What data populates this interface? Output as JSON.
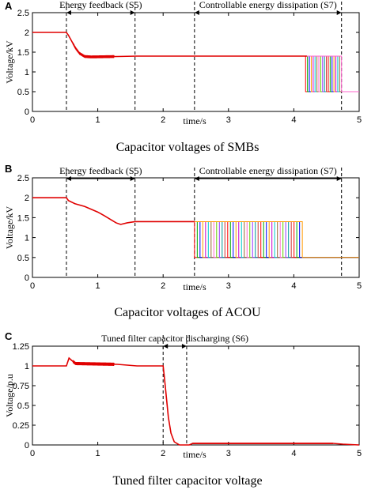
{
  "chart_data": [
    {
      "panel": "A",
      "type": "line",
      "caption": "Capacitor voltages of SMBs",
      "xlabel": "time/s",
      "ylabel": "Voltage/kV",
      "xlim": [
        0,
        5
      ],
      "ylim": [
        0,
        2.5
      ],
      "xticks": [
        "0",
        "1",
        "2",
        "3",
        "4",
        "5"
      ],
      "yticks": [
        "0",
        "0.5",
        "1",
        "1.5",
        "2",
        "2.5"
      ],
      "grid": false,
      "series": [
        {
          "color": "#e00000",
          "points": [
            [
              0,
              2.0
            ],
            [
              0.52,
              2.0
            ],
            [
              0.55,
              1.93
            ],
            [
              0.6,
              1.78
            ],
            [
              0.66,
              1.6
            ],
            [
              0.72,
              1.47
            ],
            [
              0.8,
              1.39
            ],
            [
              0.9,
              1.38
            ],
            [
              1.3,
              1.39
            ],
            [
              1.6,
              1.4
            ],
            [
              2.0,
              1.4
            ],
            [
              3.0,
              1.4
            ],
            [
              4.0,
              1.4
            ],
            [
              4.2,
              1.4
            ]
          ],
          "oscillation": {
            "from": 0.62,
            "to": 1.25,
            "amplitude": 0.035
          }
        }
      ],
      "fan": {
        "x_start": 4.18,
        "x_end": 4.73,
        "count": 20,
        "high": 1.4,
        "low": 0.5,
        "x_final": 5.0
      },
      "vlines": [
        0.52,
        1.57,
        2.48,
        4.73
      ],
      "annotations": [
        {
          "text": "Energy feedback (S5)",
          "from": 0.52,
          "to": 1.57
        },
        {
          "text": "Controllable energy dissipation (S7)",
          "from": 2.48,
          "to": 4.73
        }
      ]
    },
    {
      "panel": "B",
      "type": "line",
      "caption": "Capacitor voltages of ACOU",
      "xlabel": "time/s",
      "ylabel": "Voltage/kV",
      "xlim": [
        0,
        5
      ],
      "ylim": [
        0,
        2.5
      ],
      "xticks": [
        "0",
        "1",
        "2",
        "3",
        "4",
        "5"
      ],
      "yticks": [
        "0",
        "0.5",
        "1",
        "1.5",
        "2",
        "2.5"
      ],
      "grid": false,
      "series": [
        {
          "color": "#e00000",
          "points": [
            [
              0,
              2.0
            ],
            [
              0.52,
              2.0
            ],
            [
              0.55,
              1.93
            ],
            [
              0.65,
              1.85
            ],
            [
              0.8,
              1.78
            ],
            [
              1.0,
              1.64
            ],
            [
              1.1,
              1.55
            ],
            [
              1.2,
              1.45
            ],
            [
              1.28,
              1.37
            ],
            [
              1.35,
              1.33
            ],
            [
              1.45,
              1.37
            ],
            [
              1.57,
              1.4
            ],
            [
              2.0,
              1.4
            ],
            [
              2.48,
              1.4
            ]
          ],
          "oscillation": null
        }
      ],
      "fan": {
        "x_start": 2.48,
        "x_end": 4.13,
        "count": 40,
        "high": 1.4,
        "low": 0.5,
        "x_final": 5.0
      },
      "vlines": [
        0.52,
        1.57,
        2.48,
        4.73
      ],
      "annotations": [
        {
          "text": "Energy feedback (S5)",
          "from": 0.52,
          "to": 1.57
        },
        {
          "text": "Controllable energy dissipation (S7)",
          "from": 2.48,
          "to": 4.73
        }
      ]
    },
    {
      "panel": "C",
      "type": "line",
      "caption": "Tuned filter capacitor voltage",
      "xlabel": "time/s",
      "ylabel": "Voltage/p.u",
      "xlim": [
        0,
        5
      ],
      "ylim": [
        0,
        1.25
      ],
      "xticks": [
        "0",
        "1",
        "2",
        "3",
        "4",
        "5"
      ],
      "yticks": [
        "0",
        "0.25",
        "0.5",
        "0.75",
        "1",
        "1.25"
      ],
      "grid": false,
      "series": [
        {
          "color": "#e00000",
          "points": [
            [
              0,
              1.0
            ],
            [
              0.52,
              1.0
            ],
            [
              0.56,
              1.1
            ],
            [
              0.6,
              1.07
            ],
            [
              0.66,
              1.03
            ],
            [
              1.3,
              1.02
            ],
            [
              1.6,
              1.0
            ],
            [
              2.0,
              1.0
            ],
            [
              2.02,
              0.85
            ],
            [
              2.05,
              0.6
            ],
            [
              2.08,
              0.35
            ],
            [
              2.12,
              0.15
            ],
            [
              2.17,
              0.04
            ],
            [
              2.25,
              0.0
            ],
            [
              2.4,
              0.0
            ],
            [
              2.45,
              0.02
            ],
            [
              4.6,
              0.02
            ],
            [
              4.75,
              0.01
            ],
            [
              5.0,
              0.0
            ]
          ],
          "oscillation": {
            "from": 0.62,
            "to": 1.25,
            "amplitude": 0.02
          },
          "oscillation2": {
            "from": 2.45,
            "to": 4.6,
            "amplitude": 0.008
          }
        }
      ],
      "fan": null,
      "vlines": [
        2.0,
        2.36
      ],
      "annotations": [
        {
          "text": "Tuned filter capacitor discharging (S6)",
          "from": 2.0,
          "to": 2.36
        }
      ]
    }
  ],
  "colors": {
    "main": "#e00000",
    "fan_palette": [
      "#ff0000",
      "#00aa00",
      "#0000ff",
      "#ff9900",
      "#cc00cc",
      "#00cccc",
      "#996633",
      "#ff66cc",
      "#66cc00",
      "#9933ff",
      "#009999",
      "#cc3333"
    ]
  }
}
